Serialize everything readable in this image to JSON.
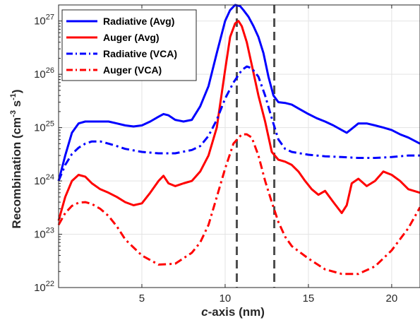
{
  "chart_data": {
    "type": "line",
    "xlabel_italic": "c",
    "xlabel_rest": "-axis (nm)",
    "ylabel_main": "Recombination (cm",
    "ylabel_sup1": "-3",
    "ylabel_mid": " s",
    "ylabel_sup2": "-1",
    "ylabel_end": ")",
    "xlim": [
      0,
      21.7
    ],
    "ylim": [
      1e+22,
      2e+27
    ],
    "yscale": "log",
    "grid": true,
    "legend_position": "top-left",
    "x_ticks": [
      5,
      10,
      15,
      20
    ],
    "x_tick_labels": [
      "5",
      "10",
      "15",
      "20"
    ],
    "y_ticks": [
      1e+22,
      1e+23,
      1e+24,
      1e+25,
      1e+26,
      1e+27
    ],
    "y_tick_base": "10",
    "y_tick_exponents": [
      "22",
      "23",
      "24",
      "25",
      "26",
      "27"
    ],
    "vlines": [
      10.7,
      12.95
    ],
    "series": [
      {
        "name": "Radiative (Avg)",
        "color": "#0000ff",
        "dash": "solid",
        "x": [
          0,
          0.4,
          0.8,
          1.2,
          1.6,
          2.0,
          2.5,
          3.0,
          3.5,
          4.0,
          4.5,
          5.0,
          5.5,
          6.0,
          6.3,
          6.6,
          7.0,
          7.5,
          8.0,
          8.5,
          9.0,
          9.5,
          10.0,
          10.3,
          10.6,
          10.9,
          11.1,
          11.4,
          11.7,
          12.0,
          12.3,
          12.6,
          12.9,
          13.2,
          13.6,
          14.0,
          14.5,
          15.0,
          15.5,
          16.0,
          16.5,
          17.0,
          17.3,
          17.6,
          18.0,
          18.5,
          19.0,
          19.5,
          20.0,
          20.5,
          21.0,
          21.7
        ],
        "y": [
          1e+24,
          3e+24,
          8e+24,
          1.2e+25,
          1.3e+25,
          1.3e+25,
          1.3e+25,
          1.3e+25,
          1.2e+25,
          1.1e+25,
          1.05e+25,
          1.1e+25,
          1.3e+25,
          1.6e+25,
          1.8e+25,
          1.7e+25,
          1.4e+25,
          1.3e+25,
          1.4e+25,
          2.5e+25,
          6e+25,
          2.5e+26,
          1e+27,
          1.6e+27,
          2e+27,
          1.9e+27,
          1.6e+27,
          1.2e+27,
          8e+26,
          5e+26,
          2.5e+26,
          9e+25,
          4e+25,
          3e+25,
          2.9e+25,
          2.7e+25,
          2.2e+25,
          1.8e+25,
          1.5e+25,
          1.3e+25,
          1.1e+25,
          9e+24,
          8e+24,
          9.5e+24,
          1.2e+25,
          1.2e+25,
          1.1e+25,
          1e+25,
          9e+24,
          7.5e+24,
          6.5e+24,
          5e+24
        ]
      },
      {
        "name": "Auger (Avg)",
        "color": "#ff0000",
        "dash": "solid",
        "x": [
          0,
          0.4,
          0.8,
          1.2,
          1.6,
          2.0,
          2.5,
          3.0,
          3.5,
          4.0,
          4.5,
          5.0,
          5.5,
          6.0,
          6.3,
          6.6,
          7.0,
          7.5,
          8.0,
          8.5,
          9.0,
          9.5,
          10.0,
          10.3,
          10.6,
          10.8,
          11.0,
          11.3,
          11.6,
          12.0,
          12.4,
          12.8,
          13.2,
          13.6,
          14.0,
          14.4,
          14.8,
          15.2,
          15.6,
          16.0,
          16.5,
          17.0,
          17.3,
          17.6,
          18.0,
          18.5,
          19.0,
          19.5,
          20.0,
          20.5,
          21.0,
          21.7
        ],
        "y": [
          1.8e+23,
          5e+23,
          1e+24,
          1.3e+24,
          1.2e+24,
          9e+23,
          7e+23,
          6e+23,
          5e+23,
          4e+23,
          3.5e+23,
          3.8e+23,
          6e+23,
          1e+24,
          1.25e+24,
          9e+23,
          8e+23,
          9e+23,
          1e+24,
          1.5e+24,
          3e+24,
          1e+25,
          1.2e+26,
          5e+26,
          9e+26,
          1e+27,
          8e+26,
          4e+26,
          1.5e+26,
          4e+25,
          1.3e+25,
          3.5e+24,
          2.5e+24,
          2.3e+24,
          2e+24,
          1.5e+24,
          1e+24,
          7e+23,
          5.5e+23,
          6.5e+23,
          4e+23,
          2.5e+23,
          3.5e+23,
          9e+23,
          1.1e+24,
          8e+23,
          1e+24,
          1.5e+24,
          1.3e+24,
          1e+24,
          7e+23,
          6e+23
        ]
      },
      {
        "name": "Radiative (VCA)",
        "color": "#0000ff",
        "dash": "dashdot",
        "x": [
          0,
          0.4,
          0.8,
          1.2,
          1.6,
          2.0,
          2.5,
          3.0,
          3.5,
          4.0,
          5.0,
          6.0,
          7.0,
          8.0,
          8.5,
          9.0,
          9.5,
          10.0,
          10.5,
          11.0,
          11.3,
          11.6,
          12.0,
          12.4,
          12.8,
          13.2,
          13.6,
          14.0,
          15.0,
          16.0,
          17.0,
          18.0,
          19.0,
          20.0,
          21.0,
          21.7
        ],
        "y": [
          1e+24,
          2e+24,
          3.2e+24,
          4.2e+24,
          5e+24,
          5.5e+24,
          5.5e+24,
          5e+24,
          4.5e+24,
          4e+24,
          3.5e+24,
          3.3e+24,
          3.3e+24,
          3.8e+24,
          4.5e+24,
          7e+24,
          1.4e+25,
          3.5e+25,
          7e+25,
          1.2e+26,
          1.4e+26,
          1.3e+26,
          9e+25,
          4e+25,
          1.5e+25,
          6e+24,
          4e+24,
          3.5e+24,
          3.1e+24,
          2.9e+24,
          2.8e+24,
          2.7e+24,
          2.7e+24,
          2.8e+24,
          3e+24,
          3e+24
        ]
      },
      {
        "name": "Auger (VCA)",
        "color": "#ff0000",
        "dash": "dashdot",
        "x": [
          0,
          0.4,
          0.8,
          1.2,
          1.6,
          2.0,
          2.5,
          3.0,
          3.5,
          4.0,
          5.0,
          6.0,
          7.0,
          8.0,
          8.5,
          9.0,
          9.5,
          10.0,
          10.5,
          11.0,
          11.3,
          11.6,
          12.0,
          12.4,
          12.8,
          13.2,
          13.6,
          14.0,
          15.0,
          16.0,
          17.0,
          18.0,
          19.0,
          20.0,
          21.0,
          21.7
        ],
        "y": [
          1.5e+23,
          2.5e+23,
          3.4e+23,
          3.9e+23,
          4e+23,
          3.7e+23,
          3e+23,
          2.2e+23,
          1.4e+23,
          8e+22,
          4e+22,
          2.7e+22,
          2.8e+22,
          4.5e+22,
          7e+22,
          1.5e+23,
          5e+23,
          1.7e+24,
          5e+24,
          7.5e+24,
          7.5e+24,
          6.5e+24,
          3e+24,
          1e+24,
          4e+23,
          1.7e+23,
          9e+22,
          6e+22,
          3.5e+22,
          2.2e+22,
          1.8e+22,
          1.8e+22,
          2.5e+22,
          5e+22,
          1.3e+23,
          3.2e+23
        ]
      }
    ]
  }
}
